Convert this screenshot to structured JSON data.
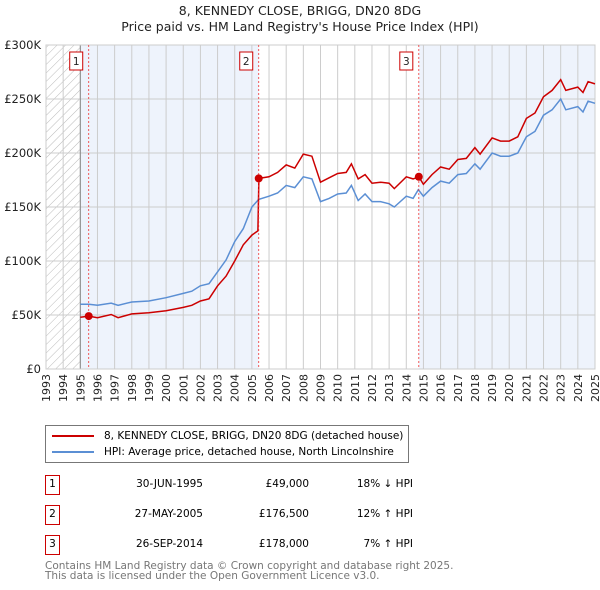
{
  "chart_data": {
    "type": "line",
    "title": "8, KENNEDY CLOSE, BRIGG, DN20 8DG",
    "subtitle": "Price paid vs. HM Land Registry's House Price Index (HPI)",
    "xlim": [
      1993,
      2025
    ],
    "ylim": [
      0,
      300000
    ],
    "y_ticks": [
      {
        "v": 0,
        "label": "£0"
      },
      {
        "v": 50000,
        "label": "£50K"
      },
      {
        "v": 100000,
        "label": "£100K"
      },
      {
        "v": 150000,
        "label": "£150K"
      },
      {
        "v": 200000,
        "label": "£200K"
      },
      {
        "v": 250000,
        "label": "£250K"
      },
      {
        "v": 300000,
        "label": "£300K"
      }
    ],
    "x_ticks": [
      "1993",
      "1994",
      "1995",
      "1996",
      "1997",
      "1998",
      "1999",
      "2000",
      "2001",
      "2002",
      "2003",
      "2004",
      "2005",
      "2006",
      "2007",
      "2008",
      "2009",
      "2010",
      "2011",
      "2012",
      "2013",
      "2014",
      "2015",
      "2016",
      "2017",
      "2018",
      "2019",
      "2020",
      "2021",
      "2022",
      "2023",
      "2024",
      "2025"
    ],
    "grid": true,
    "series": [
      {
        "name": "8, KENNEDY CLOSE, BRIGG, DN20 8DG (detached house)",
        "color": "#cc0000",
        "x": [
          1995.0,
          1995.5,
          1996,
          1996.8,
          1997.2,
          1998,
          1999,
          2000,
          2001,
          2001.5,
          2002,
          2002.5,
          2003,
          2003.5,
          2004,
          2004.5,
          2005,
          2005.35,
          2005.41,
          2006,
          2006.5,
          2007,
          2007.5,
          2008,
          2008.5,
          2009,
          2009.5,
          2010,
          2010.5,
          2010.8,
          2011.2,
          2011.6,
          2012,
          2012.5,
          2013,
          2013.3,
          2014,
          2014.4,
          2014.73,
          2015,
          2015.5,
          2016,
          2016.5,
          2017,
          2017.5,
          2018,
          2018.3,
          2019,
          2019.5,
          2020,
          2020.5,
          2021,
          2021.5,
          2022,
          2022.5,
          2023,
          2023.3,
          2024,
          2024.3,
          2024.6,
          2025
        ],
        "y": [
          48000,
          49000,
          47500,
          50500,
          47500,
          51000,
          52000,
          54000,
          57000,
          59000,
          63000,
          65000,
          77000,
          86000,
          100000,
          115000,
          124000,
          128000,
          176500,
          178000,
          182000,
          189000,
          186000,
          199000,
          197000,
          173000,
          177000,
          181000,
          182000,
          190000,
          176000,
          180000,
          172000,
          173000,
          172000,
          167000,
          178000,
          176000,
          178000,
          171000,
          180000,
          187000,
          185000,
          194000,
          195000,
          205000,
          199000,
          214000,
          211000,
          211000,
          215000,
          232000,
          237000,
          252000,
          258000,
          268000,
          258000,
          261000,
          256000,
          266000,
          264000
        ]
      },
      {
        "name": "HPI: Average price, detached house, North Lincolnshire",
        "color": "#5b8fd4",
        "x": [
          1995.0,
          1995.5,
          1996,
          1996.8,
          1997.2,
          1998,
          1999,
          2000,
          2001,
          2001.5,
          2002,
          2002.5,
          2003,
          2003.5,
          2004,
          2004.5,
          2005,
          2005.4,
          2006,
          2006.5,
          2007,
          2007.5,
          2008,
          2008.5,
          2009,
          2009.5,
          2010,
          2010.5,
          2010.8,
          2011.2,
          2011.6,
          2012,
          2012.5,
          2013,
          2013.3,
          2014,
          2014.4,
          2014.7,
          2015,
          2015.5,
          2016,
          2016.5,
          2017,
          2017.5,
          2018,
          2018.3,
          2019,
          2019.5,
          2020,
          2020.5,
          2021,
          2021.5,
          2022,
          2022.5,
          2023,
          2023.3,
          2024,
          2024.3,
          2024.6,
          2025
        ],
        "y": [
          60000,
          60000,
          59000,
          61000,
          59000,
          62000,
          63000,
          66000,
          70000,
          72000,
          77000,
          79000,
          90000,
          101000,
          118000,
          130000,
          150000,
          157000,
          160000,
          163000,
          170000,
          168000,
          178000,
          176000,
          155000,
          158000,
          162000,
          163000,
          170000,
          156000,
          162000,
          155000,
          155000,
          153000,
          150000,
          160000,
          158000,
          166000,
          160000,
          168000,
          174000,
          172000,
          180000,
          181000,
          190000,
          185000,
          200000,
          197000,
          197000,
          200000,
          215000,
          220000,
          235000,
          240000,
          250000,
          240000,
          243000,
          238000,
          248000,
          246000
        ]
      }
    ],
    "sales": [
      {
        "n": "1",
        "x": 1995.49,
        "y": 49000
      },
      {
        "n": "2",
        "x": 2005.4,
        "y": 176500
      },
      {
        "n": "3",
        "x": 2014.73,
        "y": 178000
      }
    ],
    "legend": "below"
  },
  "legend": {
    "property": "8, KENNEDY CLOSE, BRIGG, DN20 8DG (detached house)",
    "hpi": "HPI: Average price, detached house, North Lincolnshire"
  },
  "transactions": [
    {
      "n": "1",
      "date": "30-JUN-1995",
      "price": "£49,000",
      "hpi": "18% ↓ HPI"
    },
    {
      "n": "2",
      "date": "27-MAY-2005",
      "price": "£176,500",
      "hpi": "12% ↑ HPI"
    },
    {
      "n": "3",
      "date": "26-SEP-2014",
      "price": "£178,000",
      "hpi": "7% ↑ HPI"
    }
  ],
  "footer": {
    "line1": "Contains HM Land Registry data © Crown copyright and database right 2025.",
    "line2": "This data is licensed under the Open Government Licence v3.0."
  }
}
